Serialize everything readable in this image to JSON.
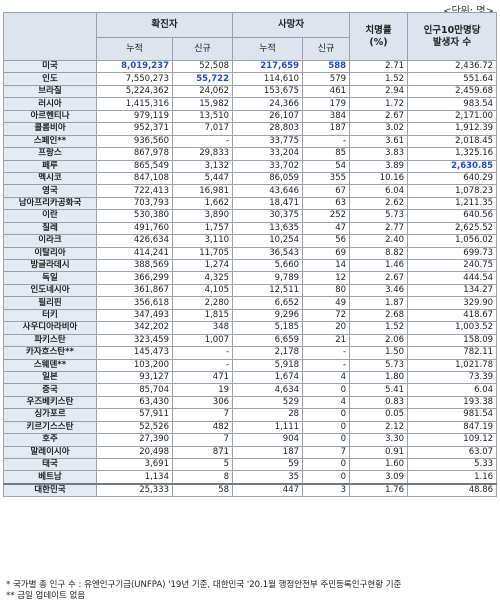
{
  "unit_label": "<단위: 명>",
  "headers": {
    "confirmed": "확진자",
    "deaths": "사망자",
    "fatality": "치명률",
    "fatality_unit": "(%)",
    "per100k_l1": "인구10만명당",
    "per100k_l2": "발생자 수",
    "cumulative": "누적",
    "new": "신규"
  },
  "rows": [
    {
      "name": "미국",
      "c": "8,019,237",
      "cn": "52,508",
      "d": "217,659",
      "dn": "588",
      "f": "2.71",
      "p": "2,436.72",
      "hl": [
        "c",
        "d",
        "dn"
      ]
    },
    {
      "name": "인도",
      "c": "7,550,273",
      "cn": "55,722",
      "d": "114,610",
      "dn": "579",
      "f": "1.52",
      "p": "551.64",
      "hl": [
        "cn"
      ]
    },
    {
      "name": "브라질",
      "c": "5,224,362",
      "cn": "24,062",
      "d": "153,675",
      "dn": "461",
      "f": "2.94",
      "p": "2,459.68",
      "hl": []
    },
    {
      "name": "러시아",
      "c": "1,415,316",
      "cn": "15,982",
      "d": "24,366",
      "dn": "179",
      "f": "1.72",
      "p": "983.54",
      "hl": []
    },
    {
      "name": "아르헨티나",
      "c": "979,119",
      "cn": "13,510",
      "d": "26,107",
      "dn": "384",
      "f": "2.67",
      "p": "2,171.00",
      "hl": []
    },
    {
      "name": "콜롬비아",
      "c": "952,371",
      "cn": "7,017",
      "d": "28,803",
      "dn": "187",
      "f": "3.02",
      "p": "1,912.39",
      "hl": []
    },
    {
      "name": "스페인**",
      "c": "936,560",
      "cn": "-",
      "d": "33,775",
      "dn": "-",
      "f": "3.61",
      "p": "2,018.45",
      "hl": []
    },
    {
      "name": "프랑스",
      "c": "867,978",
      "cn": "29,833",
      "d": "33,204",
      "dn": "85",
      "f": "3.83",
      "p": "1,325.16",
      "hl": []
    },
    {
      "name": "페루",
      "c": "865,549",
      "cn": "3,132",
      "d": "33,702",
      "dn": "54",
      "f": "3.89",
      "p": "2,630.85",
      "hl": [
        "p"
      ]
    },
    {
      "name": "멕시코",
      "c": "847,108",
      "cn": "5,447",
      "d": "86,059",
      "dn": "355",
      "f": "10.16",
      "p": "640.29",
      "hl": []
    },
    {
      "name": "영국",
      "c": "722,413",
      "cn": "16,981",
      "d": "43,646",
      "dn": "67",
      "f": "6.04",
      "p": "1,078.23",
      "hl": []
    },
    {
      "name": "남아프리카공화국",
      "c": "703,793",
      "cn": "1,662",
      "d": "18,471",
      "dn": "63",
      "f": "2.62",
      "p": "1,211.35",
      "hl": []
    },
    {
      "name": "이란",
      "c": "530,380",
      "cn": "3,890",
      "d": "30,375",
      "dn": "252",
      "f": "5.73",
      "p": "640.56",
      "hl": []
    },
    {
      "name": "칠레",
      "c": "491,760",
      "cn": "1,757",
      "d": "13,635",
      "dn": "47",
      "f": "2.77",
      "p": "2,625.52",
      "hl": []
    },
    {
      "name": "이라크",
      "c": "426,634",
      "cn": "3,110",
      "d": "10,254",
      "dn": "56",
      "f": "2.40",
      "p": "1,056.02",
      "hl": []
    },
    {
      "name": "이탈리아",
      "c": "414,241",
      "cn": "11,705",
      "d": "36,543",
      "dn": "69",
      "f": "8.82",
      "p": "699.73",
      "hl": []
    },
    {
      "name": "방글라데시",
      "c": "388,569",
      "cn": "1,274",
      "d": "5,660",
      "dn": "14",
      "f": "1.46",
      "p": "240.75",
      "hl": []
    },
    {
      "name": "독일",
      "c": "366,299",
      "cn": "4,325",
      "d": "9,789",
      "dn": "12",
      "f": "2.67",
      "p": "444.54",
      "hl": []
    },
    {
      "name": "인도네시아",
      "c": "361,867",
      "cn": "4,105",
      "d": "12,511",
      "dn": "80",
      "f": "3.46",
      "p": "134.27",
      "hl": []
    },
    {
      "name": "필리핀",
      "c": "356,618",
      "cn": "2,280",
      "d": "6,652",
      "dn": "49",
      "f": "1.87",
      "p": "329.90",
      "hl": []
    },
    {
      "name": "터키",
      "c": "347,493",
      "cn": "1,815",
      "d": "9,296",
      "dn": "72",
      "f": "2.68",
      "p": "418.67",
      "hl": []
    },
    {
      "name": "사우디아라비아",
      "c": "342,202",
      "cn": "348",
      "d": "5,185",
      "dn": "20",
      "f": "1.52",
      "p": "1,003.52",
      "hl": []
    },
    {
      "name": "파키스탄",
      "c": "323,459",
      "cn": "1,007",
      "d": "6,659",
      "dn": "21",
      "f": "2.06",
      "p": "158.09",
      "hl": []
    },
    {
      "name": "카자흐스탄**",
      "c": "145,473",
      "cn": "-",
      "d": "2,178",
      "dn": "-",
      "f": "1.50",
      "p": "782.11",
      "hl": []
    },
    {
      "name": "스웨덴**",
      "c": "103,200",
      "cn": "-",
      "d": "5,918",
      "dn": "-",
      "f": "5.73",
      "p": "1,021.78",
      "hl": []
    },
    {
      "name": "일본",
      "c": "93,127",
      "cn": "471",
      "d": "1,674",
      "dn": "4",
      "f": "1.80",
      "p": "73.39",
      "hl": []
    },
    {
      "name": "중국",
      "c": "85,704",
      "cn": "19",
      "d": "4,634",
      "dn": "0",
      "f": "5.41",
      "p": "6.04",
      "hl": []
    },
    {
      "name": "우즈베키스탄",
      "c": "63,430",
      "cn": "306",
      "d": "529",
      "dn": "4",
      "f": "0.83",
      "p": "193.38",
      "hl": []
    },
    {
      "name": "싱가포르",
      "c": "57,911",
      "cn": "7",
      "d": "28",
      "dn": "0",
      "f": "0.05",
      "p": "981.54",
      "hl": []
    },
    {
      "name": "키르기스스탄",
      "c": "52,526",
      "cn": "482",
      "d": "1,111",
      "dn": "0",
      "f": "2.12",
      "p": "847.19",
      "hl": []
    },
    {
      "name": "호주",
      "c": "27,390",
      "cn": "7",
      "d": "904",
      "dn": "0",
      "f": "3.30",
      "p": "109.12",
      "hl": []
    },
    {
      "name": "말레이시아",
      "c": "20,498",
      "cn": "871",
      "d": "187",
      "dn": "7",
      "f": "0.91",
      "p": "63.07",
      "hl": []
    },
    {
      "name": "태국",
      "c": "3,691",
      "cn": "5",
      "d": "59",
      "dn": "0",
      "f": "1.60",
      "p": "5.33",
      "hl": []
    },
    {
      "name": "베트남",
      "c": "1,134",
      "cn": "8",
      "d": "35",
      "dn": "0",
      "f": "3.09",
      "p": "1.16",
      "hl": []
    },
    {
      "name": "대한민국",
      "c": "25,333",
      "cn": "58",
      "d": "447",
      "dn": "3",
      "f": "1.76",
      "p": "48.86",
      "hl": []
    }
  ],
  "footnotes": [
    "* 국가별 총 인구 수 : 유엔인구기금(UNFPA) '19년 기준, 대한민국 '20.1월 행정안전부 주민등록인구현황 기준",
    "** 금일 업데이트 없음"
  ],
  "colors": {
    "highlight": "#1f49d8",
    "header_bg": "#dde4ed"
  }
}
